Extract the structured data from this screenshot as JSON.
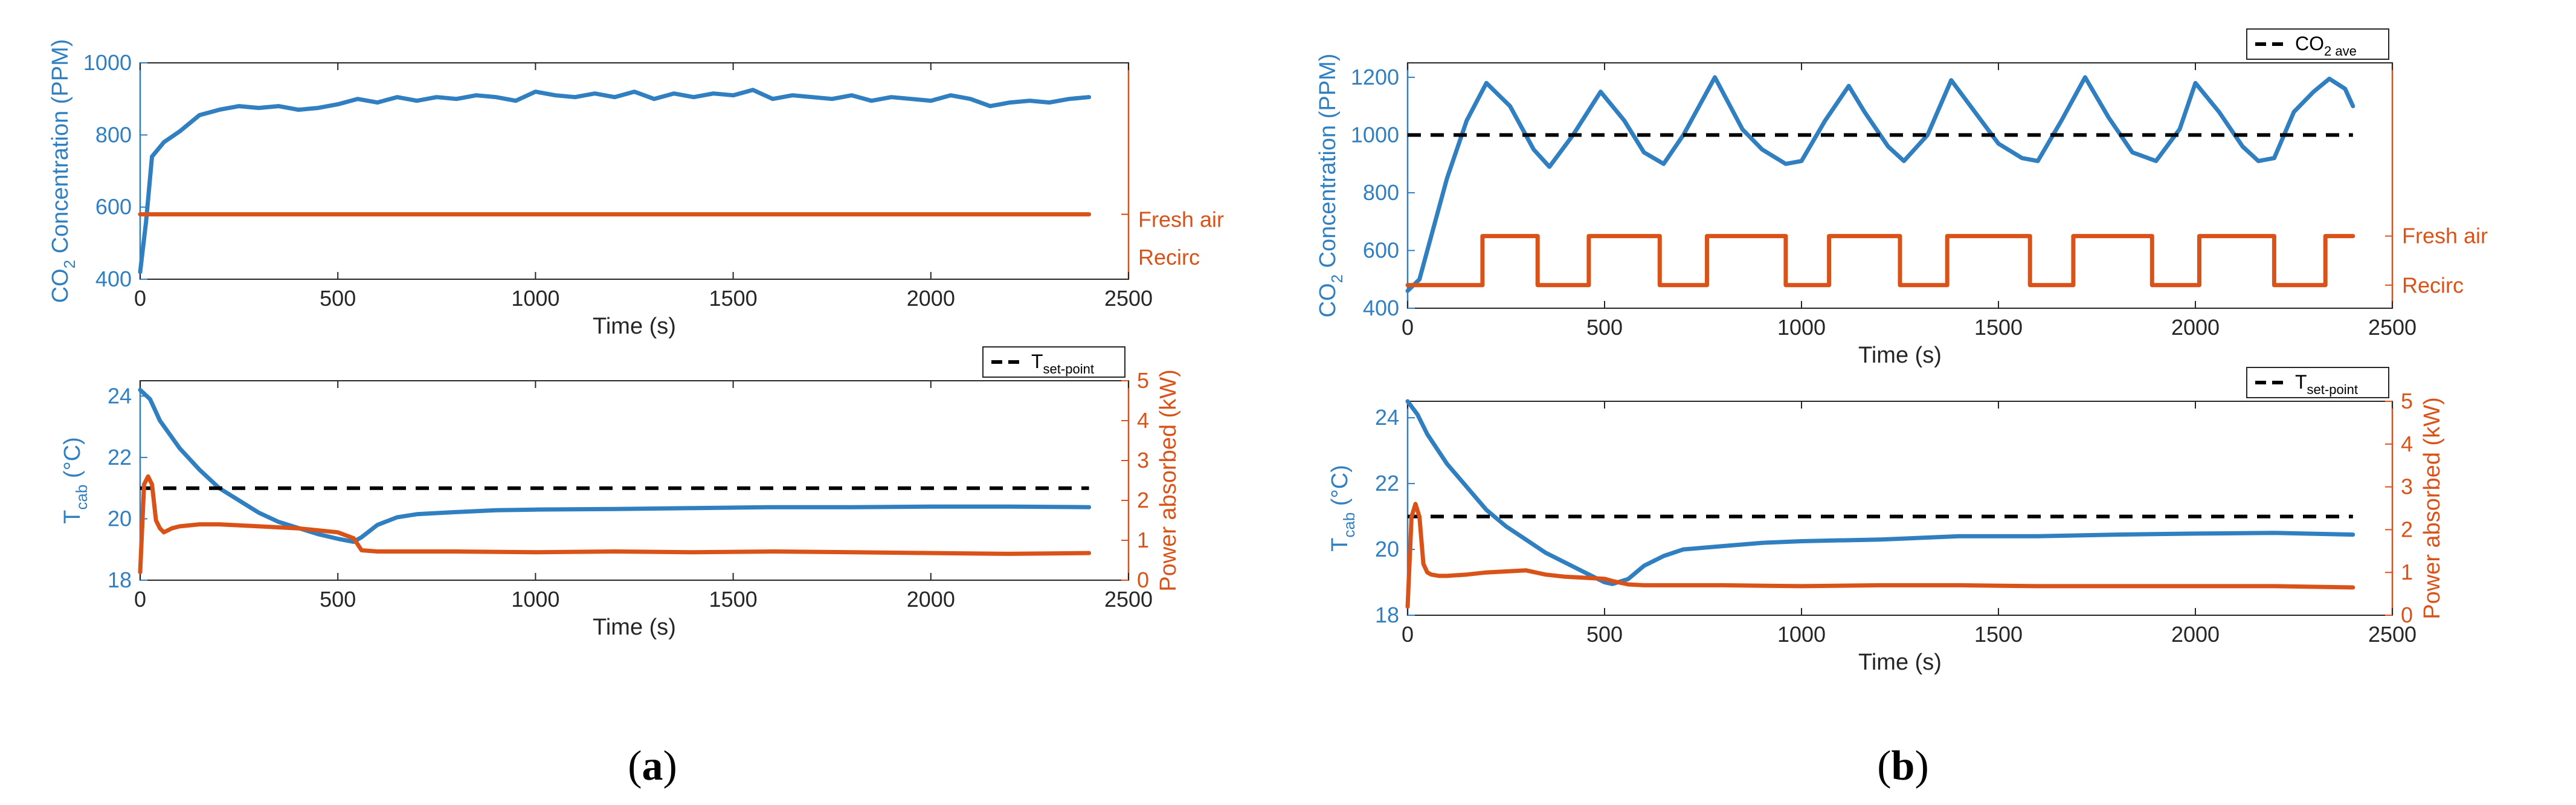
{
  "colors": {
    "blue": "#2f7fc1",
    "orange": "#d95319",
    "black": "#000000",
    "axis": "#262626"
  },
  "captions": {
    "a_open": "(",
    "a_letter": "a",
    "a_close": ")",
    "b_open": "(",
    "b_letter": "b",
    "b_close": ")"
  },
  "chart_data": [
    {
      "id": "a_top",
      "type": "line",
      "xlabel": "Time (s)",
      "ylabel_left": "CO2 Concentration (PPM)",
      "ylabel_left_main": "CO",
      "ylabel_left_sub": "2",
      "ylabel_left_rest": " Concentration (PPM)",
      "xlim": [
        0,
        2500
      ],
      "ylim": [
        400,
        1000
      ],
      "xticks": [
        "0",
        "500",
        "1000",
        "1500",
        "2000",
        "2500"
      ],
      "yticks": [
        "400",
        "600",
        "800",
        "1000"
      ],
      "right_labels": [
        "Fresh air",
        "Recirc"
      ],
      "series": [
        {
          "name": "CO2 concentration",
          "color": "blue",
          "x": [
            0,
            15,
            30,
            60,
            100,
            150,
            200,
            250,
            300,
            350,
            400,
            450,
            500,
            550,
            600,
            650,
            700,
            750,
            800,
            850,
            900,
            950,
            1000,
            1050,
            1100,
            1150,
            1200,
            1250,
            1300,
            1350,
            1400,
            1450,
            1500,
            1550,
            1600,
            1650,
            1700,
            1750,
            1800,
            1850,
            1900,
            1950,
            2000,
            2050,
            2100,
            2150,
            2200,
            2250,
            2300,
            2350,
            2400
          ],
          "y": [
            420,
            560,
            740,
            780,
            810,
            855,
            870,
            880,
            875,
            880,
            870,
            875,
            885,
            900,
            890,
            905,
            895,
            905,
            900,
            910,
            905,
            895,
            920,
            910,
            905,
            915,
            905,
            920,
            900,
            915,
            905,
            915,
            910,
            925,
            900,
            910,
            905,
            900,
            910,
            895,
            905,
            900,
            895,
            910,
            900,
            880,
            890,
            895,
            890,
            900,
            905
          ]
        },
        {
          "name": "Recirculation mode",
          "color": "orange",
          "axis": "right",
          "x": [
            0,
            2400
          ],
          "y": [
            1,
            1
          ]
        }
      ]
    },
    {
      "id": "a_bottom",
      "type": "line",
      "xlabel": "Time (s)",
      "ylabel_left_main": "T",
      "ylabel_left_sub": "cab",
      "ylabel_left_rest": " (°C)",
      "ylabel_right": "Power absorbed (kW)",
      "xlim": [
        0,
        2500
      ],
      "ylim": [
        18,
        24.5
      ],
      "ylim_right": [
        0,
        5
      ],
      "xticks": [
        "0",
        "500",
        "1000",
        "1500",
        "2000",
        "2500"
      ],
      "yticks": [
        "18",
        "20",
        "22",
        "24"
      ],
      "yticks_right": [
        "0",
        "1",
        "2",
        "3",
        "4",
        "5"
      ],
      "legend_main": "T",
      "legend_sub": "set-point",
      "series": [
        {
          "name": "T cab",
          "color": "blue",
          "x": [
            0,
            25,
            50,
            100,
            150,
            200,
            250,
            300,
            350,
            400,
            450,
            500,
            540,
            560,
            600,
            650,
            700,
            800,
            900,
            1000,
            1200,
            1400,
            1600,
            1800,
            2000,
            2200,
            2400
          ],
          "y": [
            24.2,
            23.9,
            23.2,
            22.3,
            21.6,
            21.0,
            20.6,
            20.2,
            19.9,
            19.7,
            19.5,
            19.35,
            19.25,
            19.4,
            19.8,
            20.05,
            20.15,
            20.22,
            20.28,
            20.3,
            20.32,
            20.35,
            20.38,
            20.38,
            20.4,
            20.4,
            20.38
          ]
        },
        {
          "name": "T set-point",
          "color": "black",
          "dashed": true,
          "x": [
            0,
            2400
          ],
          "y": [
            21,
            21
          ]
        },
        {
          "name": "Power absorbed",
          "color": "orange",
          "axis": "right",
          "x": [
            0,
            10,
            20,
            30,
            40,
            50,
            60,
            80,
            100,
            150,
            200,
            300,
            400,
            500,
            540,
            560,
            600,
            800,
            1000,
            1200,
            1400,
            1600,
            1800,
            2000,
            2200,
            2400
          ],
          "y": [
            0.2,
            2.4,
            2.6,
            2.4,
            1.5,
            1.3,
            1.2,
            1.3,
            1.35,
            1.4,
            1.4,
            1.35,
            1.3,
            1.2,
            1.05,
            0.75,
            0.72,
            0.72,
            0.7,
            0.72,
            0.7,
            0.72,
            0.7,
            0.68,
            0.66,
            0.68
          ]
        }
      ]
    },
    {
      "id": "b_top",
      "type": "line",
      "xlabel": "Time (s)",
      "ylabel_left_main": "CO",
      "ylabel_left_sub": "2",
      "ylabel_left_rest": " Concentration (PPM)",
      "xlim": [
        0,
        2500
      ],
      "ylim": [
        400,
        1250
      ],
      "xticks": [
        "0",
        "500",
        "1000",
        "1500",
        "2000",
        "2500"
      ],
      "yticks": [
        "400",
        "600",
        "800",
        "1000",
        "1200"
      ],
      "right_labels": [
        "Fresh air",
        "Recirc"
      ],
      "legend_main": "CO",
      "legend_sub": "2 ave",
      "series": [
        {
          "name": "CO2 concentration",
          "color": "blue",
          "x": [
            0,
            30,
            60,
            100,
            150,
            200,
            260,
            320,
            360,
            420,
            490,
            550,
            600,
            650,
            700,
            780,
            850,
            900,
            960,
            1000,
            1060,
            1120,
            1160,
            1220,
            1260,
            1320,
            1380,
            1440,
            1500,
            1560,
            1600,
            1660,
            1720,
            1780,
            1840,
            1900,
            1960,
            2000,
            2060,
            2120,
            2160,
            2200,
            2250,
            2300,
            2340,
            2380,
            2400
          ],
          "y": [
            460,
            500,
            650,
            850,
            1050,
            1180,
            1100,
            950,
            890,
            1000,
            1150,
            1050,
            940,
            900,
            1000,
            1200,
            1020,
            950,
            900,
            910,
            1050,
            1170,
            1080,
            960,
            910,
            1000,
            1190,
            1080,
            970,
            920,
            910,
            1050,
            1200,
            1060,
            940,
            910,
            1020,
            1180,
            1080,
            960,
            910,
            920,
            1080,
            1150,
            1195,
            1160,
            1100
          ]
        },
        {
          "name": "CO2 ave",
          "color": "black",
          "dashed": true,
          "x": [
            0,
            2400
          ],
          "y": [
            1000,
            1000
          ]
        },
        {
          "name": "Fresh/Recirc switching",
          "color": "orange",
          "axis": "right",
          "x": [
            0,
            190,
            190,
            330,
            330,
            460,
            460,
            640,
            640,
            760,
            760,
            960,
            960,
            1070,
            1070,
            1250,
            1250,
            1370,
            1370,
            1580,
            1580,
            1690,
            1690,
            1890,
            1890,
            2010,
            2010,
            2200,
            2200,
            2330,
            2330,
            2400
          ],
          "y": [
            0,
            0,
            1,
            1,
            0,
            0,
            1,
            1,
            0,
            0,
            1,
            1,
            0,
            0,
            1,
            1,
            0,
            0,
            1,
            1,
            0,
            0,
            1,
            1,
            0,
            0,
            1,
            1,
            0,
            0,
            1,
            1
          ]
        }
      ]
    },
    {
      "id": "b_bottom",
      "type": "line",
      "xlabel": "Time (s)",
      "ylabel_left_main": "T",
      "ylabel_left_sub": "cab",
      "ylabel_left_rest": " (°C)",
      "ylabel_right": "Power absorbed (kW)",
      "xlim": [
        0,
        2500
      ],
      "ylim": [
        18,
        24.5
      ],
      "ylim_right": [
        0,
        5
      ],
      "xticks": [
        "0",
        "500",
        "1000",
        "1500",
        "2000",
        "2500"
      ],
      "yticks": [
        "18",
        "20",
        "22",
        "24"
      ],
      "yticks_right": [
        "0",
        "1",
        "2",
        "3",
        "4",
        "5"
      ],
      "legend_main": "T",
      "legend_sub": "set-point",
      "series": [
        {
          "name": "T cab",
          "color": "blue",
          "x": [
            0,
            25,
            50,
            100,
            150,
            200,
            250,
            300,
            350,
            400,
            450,
            500,
            520,
            560,
            600,
            650,
            700,
            800,
            900,
            1000,
            1200,
            1400,
            1600,
            1800,
            2000,
            2200,
            2400
          ],
          "y": [
            24.5,
            24.1,
            23.5,
            22.6,
            21.9,
            21.2,
            20.7,
            20.3,
            19.9,
            19.6,
            19.3,
            19.0,
            18.95,
            19.1,
            19.5,
            19.8,
            20.0,
            20.1,
            20.2,
            20.25,
            20.3,
            20.4,
            20.4,
            20.45,
            20.48,
            20.5,
            20.45
          ]
        },
        {
          "name": "T set-point",
          "color": "black",
          "dashed": true,
          "x": [
            0,
            2400
          ],
          "y": [
            21,
            21
          ]
        },
        {
          "name": "Power absorbed",
          "color": "orange",
          "axis": "right",
          "x": [
            0,
            10,
            20,
            30,
            40,
            50,
            60,
            80,
            100,
            150,
            200,
            300,
            350,
            400,
            500,
            520,
            560,
            600,
            800,
            1000,
            1200,
            1400,
            1600,
            1800,
            2000,
            2200,
            2400
          ],
          "y": [
            0.2,
            2.3,
            2.6,
            2.3,
            1.2,
            1.0,
            0.95,
            0.92,
            0.92,
            0.95,
            1.0,
            1.05,
            0.95,
            0.9,
            0.85,
            0.8,
            0.72,
            0.7,
            0.7,
            0.68,
            0.7,
            0.7,
            0.68,
            0.68,
            0.68,
            0.68,
            0.65
          ]
        }
      ]
    }
  ]
}
